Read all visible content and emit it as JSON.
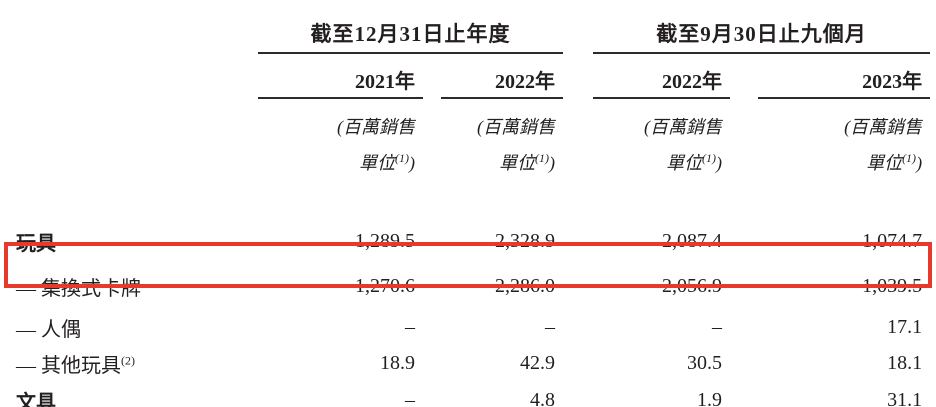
{
  "table": {
    "column_groups": [
      {
        "title": "截至12月31日止年度",
        "years": [
          "2021年",
          "2022年"
        ]
      },
      {
        "title": "截至9月30日止九個月",
        "years": [
          "2022年",
          "2023年"
        ]
      }
    ],
    "unit_header": {
      "line1": "(百萬銷售",
      "line2_text": "單位",
      "line2_superscript": "(1)",
      "line2_close": ")"
    },
    "rows": [
      {
        "label": "玩具",
        "values": [
          "1,289.5",
          "2,328.9",
          "2,087.4",
          "1,074.7"
        ]
      },
      {
        "label": "— 集換式卡牌",
        "values": [
          "1,270.6",
          "2,286.0",
          "2,056.9",
          "1,039.5"
        ]
      },
      {
        "label": "— 人偶",
        "values": [
          "–",
          "–",
          "–",
          "17.1"
        ]
      },
      {
        "label": "— 其他玩具",
        "label_superscript": "(2)",
        "values": [
          "18.9",
          "42.9",
          "30.5",
          "18.1"
        ]
      },
      {
        "label": "文具",
        "values": [
          "–",
          "4.8",
          "1.9",
          "31.1"
        ]
      }
    ],
    "highlight_color": "#e8392d"
  }
}
